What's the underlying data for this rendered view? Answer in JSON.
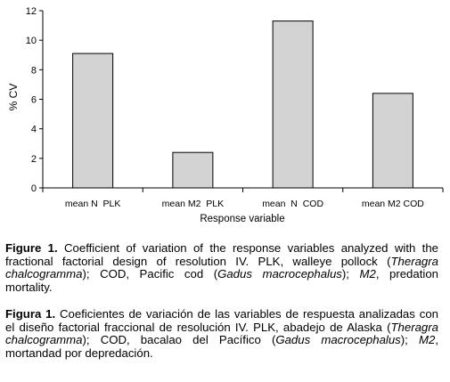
{
  "chart_data": {
    "type": "bar",
    "categories": [
      "mean N  PLK",
      "mean M2  PLK",
      "mean  N  COD",
      "mean M2 COD"
    ],
    "values": [
      9.1,
      2.4,
      11.3,
      6.4
    ],
    "ylabel": "% CV",
    "xlabel": "Response variable",
    "ylim": [
      0,
      12
    ],
    "yticks": [
      "0",
      "2",
      "4",
      "6",
      "8",
      "10",
      "12"
    ],
    "bar_color": "#d3d3d3",
    "grid": false
  },
  "caption_en": {
    "label": "Figure 1.",
    "t1": " Coefficient of variation of the response variables analyzed with the fractional factorial design of resolution IV. PLK, walleye pollock (",
    "i1": "Theragra chalcogramma",
    "t2": "); COD, Pacific cod (",
    "i2": "Gadus macrocephalus",
    "t3": "); ",
    "i3": "M2",
    "t4": ", predation mortality."
  },
  "caption_es": {
    "label": "Figura 1.",
    "t1": " Coeficientes de variación de las variables de respuesta analizadas con el diseño factorial fraccional de resolución IV. PLK, abadejo de Alaska (",
    "i1": "Theragra chalcogramma",
    "t2": "); COD, bacalao del Pacífico (",
    "i2": "Gadus macrocephalus",
    "t3": "); ",
    "i3": "M2",
    "t4": ", mortandad por depredación."
  }
}
